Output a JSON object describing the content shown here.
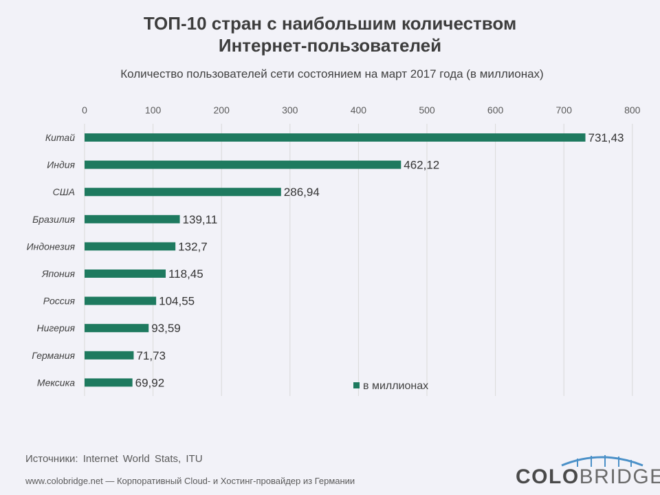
{
  "title_line1": "ТОП-10 стран с наибольшим количеством",
  "title_line2": "Интернет-пользователей",
  "subtitle": "Количество пользователей сети состоянием на март 2017 года (в миллионах)",
  "colors": {
    "bar": "#1e7a5f",
    "grid": "#d9d9d9",
    "background": "#f2f2f8",
    "logo_arc": "#4a90c8"
  },
  "chart_data": {
    "type": "bar",
    "orientation": "horizontal",
    "categories": [
      "Китай",
      "Индия",
      "США",
      "Бразилия",
      "Индонезия",
      "Япония",
      "Россия",
      "Нигерия",
      "Германия",
      "Мексика"
    ],
    "series": [
      {
        "name": "в миллионах",
        "values": [
          731.43,
          462.12,
          286.94,
          139.11,
          132.7,
          118.45,
          104.55,
          93.59,
          71.73,
          69.92
        ],
        "labels": [
          "731,43",
          "462,12",
          "286,94",
          "139,11",
          "132,7",
          "118,45",
          "104,55",
          "93,59",
          "71,73",
          "69,92"
        ]
      }
    ],
    "xlim": [
      0,
      800
    ],
    "xticks": [
      0,
      100,
      200,
      300,
      400,
      500,
      600,
      700,
      800
    ],
    "x_axis_position": "top",
    "grid": true,
    "legend_position": "bottom-center"
  },
  "footer": {
    "source": "Источники: Internet World Stats, ITU",
    "text": "www.colobridge.net — Корпоративный Cloud- и Хостинг-провайдер из Германии"
  },
  "logo": {
    "part1": "COLO",
    "part2": "BRIDGE"
  }
}
